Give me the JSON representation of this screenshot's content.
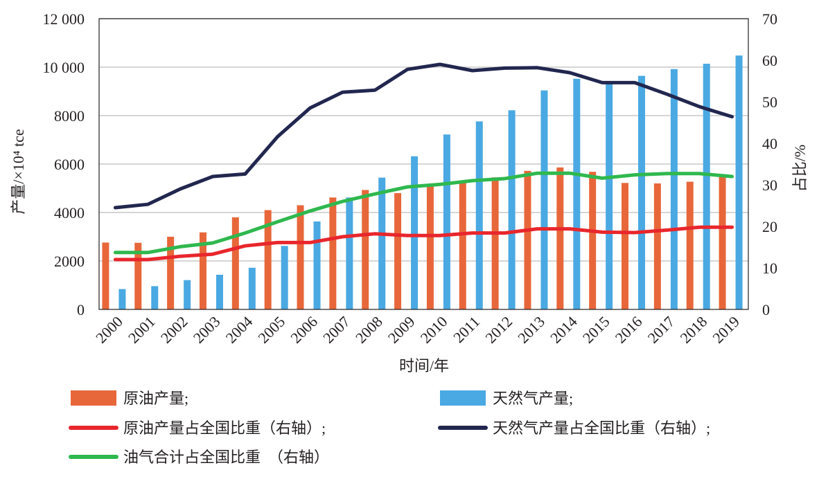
{
  "chart_data": {
    "type": "bar",
    "xlabel": "时间/年",
    "ylabel": "产量/×10⁴ tce",
    "y2label": "占比/%",
    "categories": [
      "2000",
      "2001",
      "2002",
      "2003",
      "2004",
      "2005",
      "2006",
      "2007",
      "2008",
      "2009",
      "2010",
      "2011",
      "2012",
      "2013",
      "2014",
      "2015",
      "2016",
      "2017",
      "2018",
      "2019"
    ],
    "ylim": [
      0,
      12000
    ],
    "y2lim": [
      0,
      70
    ],
    "yticks": [
      "0",
      "2000",
      "4000",
      "6000",
      "8000",
      "10 000",
      "12 000"
    ],
    "y2ticks": [
      "0",
      "10",
      "20",
      "30",
      "40",
      "50",
      "60",
      "70"
    ],
    "grid": true,
    "legend_position": "bottom",
    "series": [
      {
        "name": "原油产量;",
        "type": "bar",
        "axis": "left",
        "color": "#e8673a",
        "values": [
          2760,
          2750,
          3000,
          3180,
          3800,
          4100,
          4300,
          4620,
          4930,
          4800,
          5100,
          5220,
          5450,
          5720,
          5860,
          5680,
          5220,
          5200,
          5270,
          5480
        ]
      },
      {
        "name": "天然气产量;",
        "type": "bar",
        "axis": "left",
        "color": "#4aa9e2",
        "values": [
          840,
          960,
          1210,
          1430,
          1720,
          2620,
          3630,
          4620,
          5440,
          6320,
          7220,
          7760,
          8220,
          9040,
          9520,
          9400,
          9640,
          9920,
          10140,
          10480
        ]
      },
      {
        "name": "原油产量占全国比重（右轴）;",
        "type": "line",
        "axis": "right",
        "color": "#e8262c",
        "values": [
          12.0,
          12.0,
          12.8,
          13.3,
          15.3,
          16.1,
          16.1,
          17.5,
          18.2,
          17.8,
          17.8,
          18.4,
          18.4,
          19.4,
          19.4,
          18.6,
          18.5,
          19.1,
          19.8,
          19.8
        ]
      },
      {
        "name": "天然气产量占全国比重（右轴）;",
        "type": "line",
        "axis": "right",
        "color": "#22274f",
        "values": [
          24.5,
          25.3,
          29.0,
          32.0,
          32.6,
          41.6,
          48.5,
          52.3,
          52.8,
          57.8,
          59.0,
          57.5,
          58.1,
          58.2,
          57.0,
          54.6,
          54.6,
          51.8,
          48.8,
          46.4
        ]
      },
      {
        "name": "油气合计占全国比重　（右轴）",
        "type": "line",
        "axis": "right",
        "color": "#2fb84e",
        "values": [
          13.7,
          13.7,
          15.1,
          16.0,
          18.4,
          21.1,
          23.7,
          26.0,
          27.8,
          29.5,
          30.1,
          31.0,
          31.5,
          32.8,
          32.8,
          31.6,
          32.4,
          32.7,
          32.7,
          32.0
        ]
      }
    ]
  }
}
